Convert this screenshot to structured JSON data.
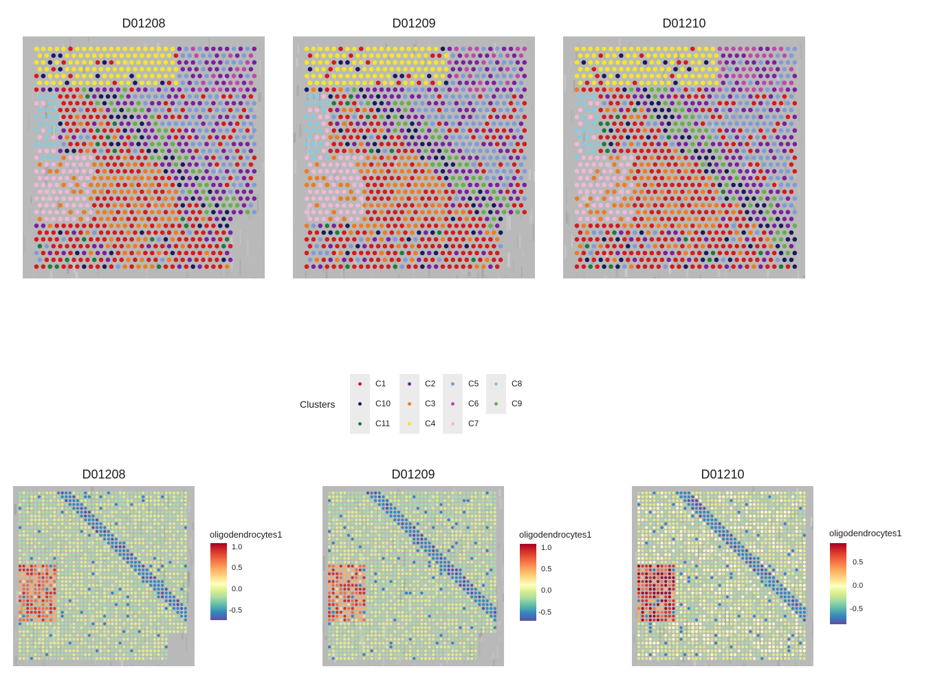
{
  "chart_data": [
    {
      "type": "scatter",
      "panel": "cluster",
      "title": "D01208"
    },
    {
      "type": "scatter",
      "panel": "cluster",
      "title": "D01209"
    },
    {
      "type": "scatter",
      "panel": "cluster",
      "title": "D01210"
    },
    {
      "type": "scatter",
      "panel": "score",
      "title": "D01208",
      "legend_title": "oligodendrocytes1",
      "colorbar_ticks": [
        "1.0",
        "0.5",
        "0.0",
        "-0.5"
      ],
      "range": [
        -0.75,
        1.1
      ]
    },
    {
      "type": "scatter",
      "panel": "score",
      "title": "D01209",
      "legend_title": "oligodendrocytes1",
      "colorbar_ticks": [
        "1.0",
        "0.5",
        "0.0",
        "-0.5"
      ],
      "range": [
        -0.75,
        1.1
      ]
    },
    {
      "type": "scatter",
      "panel": "score",
      "title": "D01210",
      "legend_title": "oligodendrocytes1",
      "colorbar_ticks": [
        "0.5",
        "0.0",
        "-0.5"
      ],
      "range": [
        -0.75,
        0.9
      ]
    }
  ],
  "legend": {
    "title": "Clusters",
    "items": [
      {
        "label": "C1",
        "color": "#d7191c"
      },
      {
        "label": "C10",
        "color": "#1a1a5e"
      },
      {
        "label": "C11",
        "color": "#1f7a3a"
      },
      {
        "label": "C2",
        "color": "#7b1fa2"
      },
      {
        "label": "C3",
        "color": "#f07a20"
      },
      {
        "label": "C4",
        "color": "#f5e72a"
      },
      {
        "label": "C5",
        "color": "#7f9bd8"
      },
      {
        "label": "C6",
        "color": "#c048a8"
      },
      {
        "label": "C7",
        "color": "#f1b8d8"
      },
      {
        "label": "C8",
        "color": "#86cbe0"
      },
      {
        "label": "C9",
        "color": "#66b04a"
      }
    ]
  }
}
